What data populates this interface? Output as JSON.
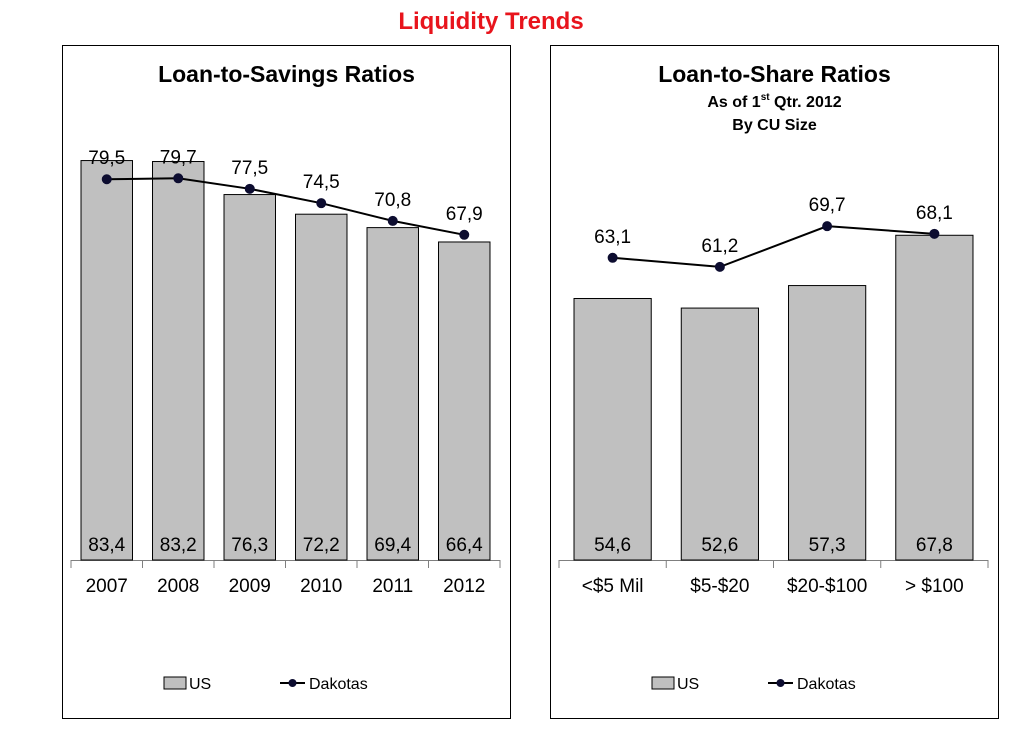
{
  "page": {
    "title": "Liquidity Trends",
    "title_color": "#e8141c"
  },
  "colors": {
    "bar_fill": "#c0c0c0",
    "bar_stroke": "#000000",
    "line": "#000000",
    "marker": "#0d0d30"
  },
  "chart_data": [
    {
      "type": "bar",
      "title": "Loan-to-Savings Ratios",
      "subtitle_parts": [],
      "categories": [
        "2007",
        "2008",
        "2009",
        "2010",
        "2011",
        "2012"
      ],
      "series": [
        {
          "name": "US",
          "kind": "bar",
          "values": [
            83.4,
            83.2,
            76.3,
            72.2,
            69.4,
            66.4
          ],
          "labels": [
            "83,4",
            "83,2",
            "76,3",
            "72,2",
            "69,4",
            "66,4"
          ]
        },
        {
          "name": "Dakotas",
          "kind": "line",
          "values": [
            79.5,
            79.7,
            77.5,
            74.5,
            70.8,
            67.9
          ],
          "labels": [
            "79,5",
            "79,7",
            "77,5",
            "74,5",
            "70,8",
            "67,9"
          ]
        }
      ],
      "ylim": [
        0,
        95
      ],
      "grid": false,
      "legend": "bottom"
    },
    {
      "type": "bar",
      "title": "Loan-to-Share Ratios",
      "subtitle_parts": [
        {
          "pre": "As of 1",
          "sup": "st",
          "post": " Qtr. 2012"
        },
        {
          "pre": "By CU Size",
          "sup": "",
          "post": ""
        }
      ],
      "categories": [
        "<$5 Mil",
        "$5-$20",
        "$20-$100",
        "> $100"
      ],
      "series": [
        {
          "name": "US",
          "kind": "bar",
          "values": [
            54.6,
            52.6,
            57.3,
            67.8
          ],
          "labels": [
            "54,6",
            "52,6",
            "57,3",
            "67,8"
          ]
        },
        {
          "name": "Dakotas",
          "kind": "line",
          "values": [
            63.1,
            61.2,
            69.7,
            68.1
          ],
          "labels": [
            "63,1",
            "61,2",
            "69,7",
            "68,1"
          ]
        }
      ],
      "ylim": [
        0,
        95
      ],
      "grid": false,
      "legend": "bottom"
    }
  ]
}
